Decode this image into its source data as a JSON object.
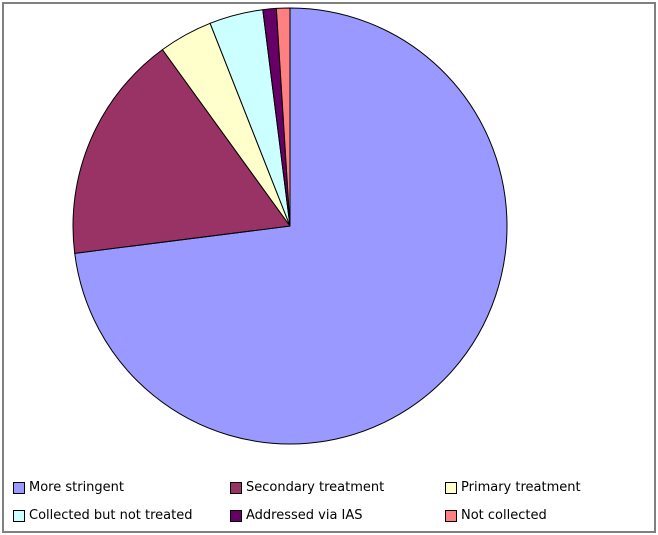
{
  "chart_data": {
    "type": "pie",
    "title": "",
    "slices": [
      {
        "label": "More stringent",
        "value_pct": 73,
        "color": "#9999FF"
      },
      {
        "label": "Secondary treatment",
        "value_pct": 17,
        "color": "#993366"
      },
      {
        "label": "Primary treatment",
        "value_pct": 4,
        "color": "#FFFFCC"
      },
      {
        "label": "Collected but not treated",
        "value_pct": 4,
        "color": "#CCFFFF"
      },
      {
        "label": "Addressed via IAS",
        "value_pct": 1,
        "color": "#660066"
      },
      {
        "label": "Not collected",
        "value_pct": 1,
        "color": "#FF8080"
      }
    ],
    "start_angle_deg": 0,
    "direction": "clockwise",
    "legend_position": "bottom",
    "legend_columns": 3,
    "legend_rows": 2,
    "slice_outline_color": "#000000",
    "background_color": "#FFFFFF",
    "frame_border_color": "#808080"
  }
}
